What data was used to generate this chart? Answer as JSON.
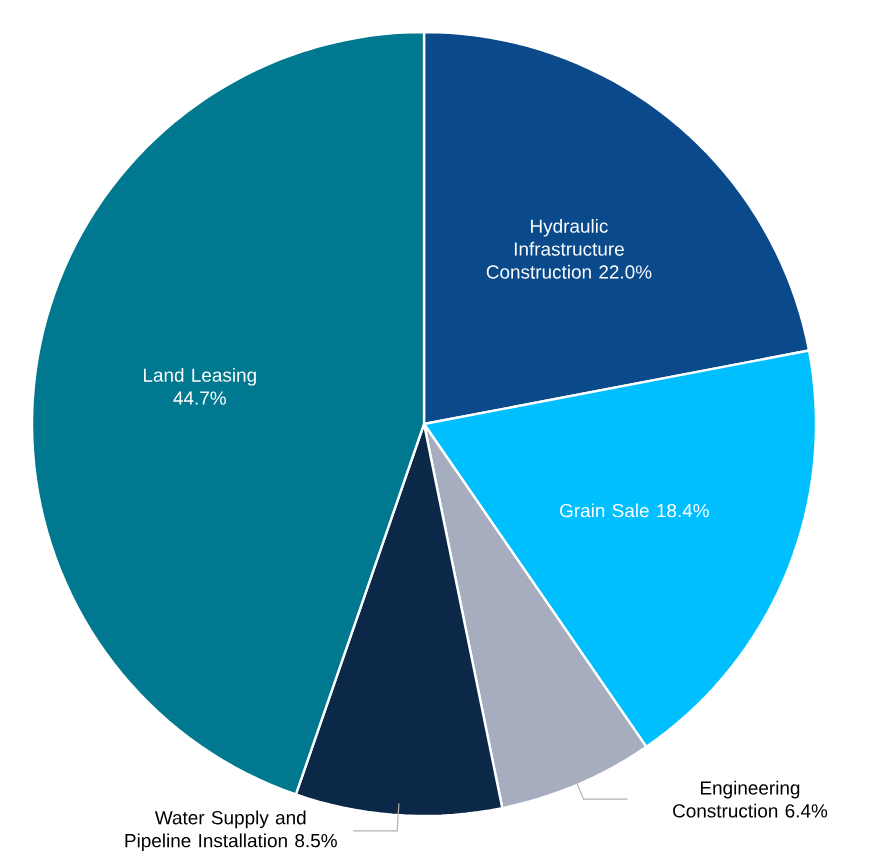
{
  "chart_data": {
    "type": "pie",
    "categories": [
      "Hydraulic Infrastructure Construction",
      "Grain Sale",
      "Engineering Construction",
      "Water Supply and Pipeline Installation",
      "Land Leasing"
    ],
    "values": [
      22.0,
      18.4,
      6.4,
      8.5,
      44.7
    ],
    "value_labels": [
      "22.0%",
      "18.4%",
      "6.4%",
      "8.5%",
      "44.7%"
    ],
    "colors": [
      "#0a4a8a",
      "#00bfff",
      "#a5adbf",
      "#0b2848",
      "#00788f"
    ]
  }
}
